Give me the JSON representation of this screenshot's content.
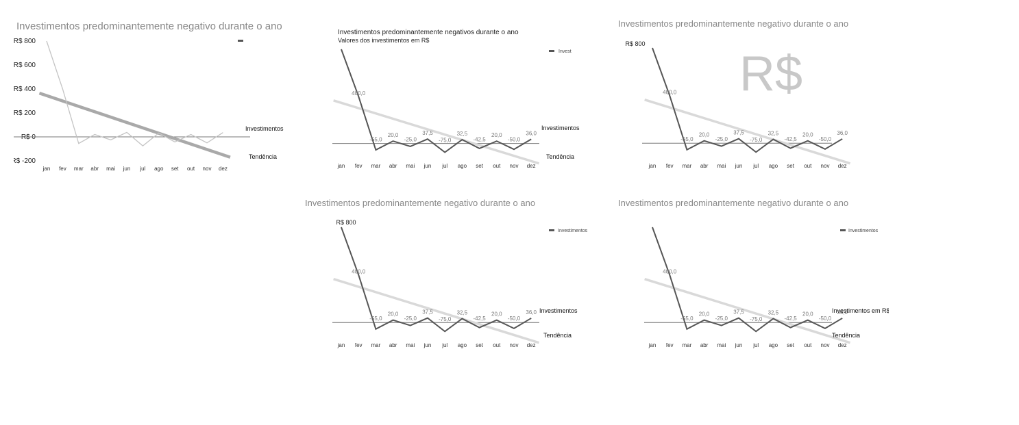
{
  "chart_data": [
    {
      "type": "line",
      "title": "Investimentos predominantemente negativo durante o ano",
      "subtitle": "",
      "categories": [
        "jan",
        "fev",
        "mar",
        "abr",
        "mai",
        "jun",
        "jul",
        "ago",
        "set",
        "out",
        "nov",
        "dez"
      ],
      "y_tick_labels": [
        "R$ 800",
        "R$ 600",
        "R$ 400",
        "R$ 200",
        "R$ 0",
        "R$ -200"
      ],
      "ylim": [
        -200,
        800
      ],
      "series": [
        {
          "name": "Investimentos",
          "values": [
            800,
            400,
            -55,
            20,
            -25,
            37.5,
            -75,
            32.5,
            -42.5,
            20,
            -50,
            36
          ],
          "color": "#c4c4c4"
        },
        {
          "name": "Tendência",
          "values": [
            345,
            300,
            255,
            210,
            165,
            120,
            75,
            30,
            -15,
            -60,
            -105,
            -150
          ],
          "color": "#a9a9a9"
        }
      ],
      "data_labels": [],
      "legend_entries": [
        ""
      ],
      "watermark": ""
    },
    {
      "type": "line",
      "title": "Investimentos predominantemente negativos durante o ano",
      "subtitle": "Valores dos investimentos em R$",
      "categories": [
        "jan",
        "fev",
        "mar",
        "abr",
        "mai",
        "jun",
        "jul",
        "ago",
        "set",
        "out",
        "nov",
        "dez"
      ],
      "y_tick_labels": [],
      "ylim": [
        -200,
        800
      ],
      "series": [
        {
          "name": "Investimentos",
          "values": [
            800,
            400,
            -55,
            20,
            -25,
            37.5,
            -75,
            32.5,
            -42.5,
            20,
            -50,
            36
          ],
          "color": "#555555"
        },
        {
          "name": "Tendência",
          "values": [
            345,
            300,
            255,
            210,
            165,
            120,
            75,
            30,
            -15,
            -60,
            -105,
            -150
          ],
          "color": "#d9d9d9"
        }
      ],
      "data_labels": [
        "",
        "400,0",
        "-55,0",
        "20,0",
        "-25,0",
        "37,5",
        "-75,0",
        "32,5",
        "-42,5",
        "20,0",
        "-50,0",
        "36,0"
      ],
      "legend_entries": [
        "Invest"
      ],
      "watermark": ""
    },
    {
      "type": "line",
      "title": "Investimentos predominantemente negativo durante o ano",
      "subtitle": "",
      "categories": [
        "jan",
        "fev",
        "mar",
        "abr",
        "mai",
        "jun",
        "jul",
        "ago",
        "set",
        "out",
        "nov",
        "dez"
      ],
      "y_tick_labels": [
        "R$ 800"
      ],
      "ylim": [
        -200,
        800
      ],
      "series": [
        {
          "name": "",
          "values": [
            800,
            400,
            -55,
            20,
            -25,
            37.5,
            -75,
            32.5,
            -42.5,
            20,
            -50,
            36
          ],
          "color": "#555555"
        },
        {
          "name": "",
          "values": [
            345,
            300,
            255,
            210,
            165,
            120,
            75,
            30,
            -15,
            -60,
            -105,
            -150
          ],
          "color": "#d9d9d9"
        }
      ],
      "data_labels": [
        "",
        "400,0",
        "-55,0",
        "20,0",
        "-25,0",
        "37,5",
        "-75,0",
        "32,5",
        "-42,5",
        "20,0",
        "-50,0",
        "36,0"
      ],
      "legend_entries": [],
      "watermark": "R$"
    },
    {
      "type": "line",
      "title": "Investimentos predominantemente negativo durante o ano",
      "subtitle": "",
      "categories": [
        "jan",
        "fev",
        "mar",
        "abr",
        "mai",
        "jun",
        "jul",
        "ago",
        "set",
        "out",
        "nov",
        "dez"
      ],
      "y_tick_labels": [
        "R$ 800"
      ],
      "ylim": [
        -200,
        800
      ],
      "series": [
        {
          "name": "Investimentos",
          "values": [
            800,
            400,
            -55,
            20,
            -25,
            37.5,
            -75,
            32.5,
            -42.5,
            20,
            -50,
            36
          ],
          "color": "#555555"
        },
        {
          "name": "Tendência",
          "values": [
            345,
            300,
            255,
            210,
            165,
            120,
            75,
            30,
            -15,
            -60,
            -105,
            -150
          ],
          "color": "#d9d9d9"
        }
      ],
      "data_labels": [
        "",
        "400,0",
        "-55,0",
        "20,0",
        "-25,0",
        "37,5",
        "-75,0",
        "32,5",
        "-42,5",
        "20,0",
        "-50,0",
        "36,0"
      ],
      "legend_entries": [
        "Investimentos"
      ],
      "watermark": ""
    },
    {
      "type": "line",
      "title": "Investimentos predominantemente negativo durante o ano",
      "subtitle": "",
      "categories": [
        "jan",
        "fev",
        "mar",
        "abr",
        "mai",
        "jun",
        "jul",
        "ago",
        "set",
        "out",
        "nov",
        "dez"
      ],
      "y_tick_labels": [],
      "ylim": [
        -200,
        800
      ],
      "series": [
        {
          "name": "Investimentos em R$",
          "values": [
            800,
            400,
            -55,
            20,
            -25,
            37.5,
            -75,
            32.5,
            -42.5,
            20,
            -50,
            36
          ],
          "color": "#555555"
        },
        {
          "name": "Tendência",
          "values": [
            345,
            300,
            255,
            210,
            165,
            120,
            75,
            30,
            -15,
            -60,
            -105,
            -150
          ],
          "color": "#d9d9d9"
        }
      ],
      "data_labels": [
        "",
        "400,0",
        "-55,0",
        "20,0",
        "-25,0",
        "37,5",
        "-75,0",
        "32,5",
        "-42,5",
        "20,0",
        "-50,0",
        "36,0"
      ],
      "legend_entries": [
        "Investimentos"
      ],
      "watermark": ""
    }
  ]
}
